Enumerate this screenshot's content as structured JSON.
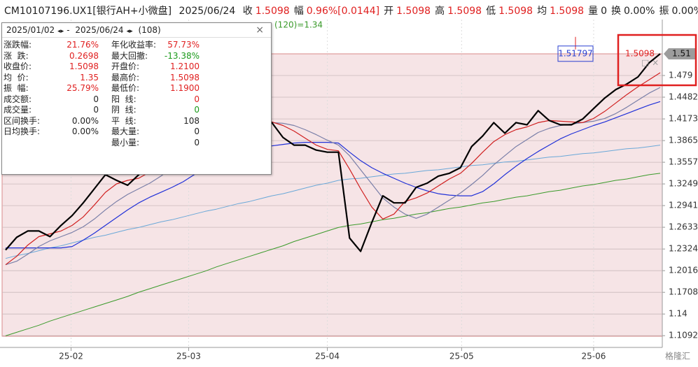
{
  "header": {
    "code": "CM10107196.UX1[银行AH+小微盘]",
    "date": "2025/06/24",
    "items": [
      {
        "label": "收",
        "value": "1.5098",
        "color": "#e02020"
      },
      {
        "label": "幅",
        "value": "0.96%[0.0144]",
        "color": "#e02020"
      },
      {
        "label": "开",
        "value": "1.5098",
        "color": "#e02020"
      },
      {
        "label": "高",
        "value": "1.5098",
        "color": "#e02020"
      },
      {
        "label": "低",
        "value": "1.5098",
        "color": "#e02020"
      },
      {
        "label": "均",
        "value": "1.5098",
        "color": "#e02020"
      },
      {
        "label": "量",
        "value": "0",
        "color": "#222222"
      },
      {
        "label": "换",
        "value": "0.00%",
        "color": "#222222"
      },
      {
        "label": "振",
        "value": "0.00%",
        "color": "#222222"
      }
    ]
  },
  "stats_panel": {
    "start": "2025/01/02",
    "end": "2025/06/24",
    "count": "(108)",
    "close": "×",
    "left": [
      {
        "label": "涨跌幅:",
        "value": "21.76%",
        "color": "#e02020"
      },
      {
        "label": "涨  跌:",
        "value": "0.2698",
        "color": "#e02020"
      },
      {
        "label": "收盘价:",
        "value": "1.5098",
        "color": "#e02020"
      },
      {
        "label": "均  价:",
        "value": "1.35",
        "color": "#e02020"
      },
      {
        "label": "振  幅:",
        "value": "25.79%",
        "color": "#e02020"
      },
      {
        "label": "成交额:",
        "value": "0",
        "color": "#222222"
      },
      {
        "label": "成交量:",
        "value": "0",
        "color": "#222222"
      },
      {
        "label": "区间换手:",
        "value": "0.00%",
        "color": "#222222"
      },
      {
        "label": "日均换手:",
        "value": "0.00%",
        "color": "#222222"
      }
    ],
    "right": [
      {
        "label": "年化收益率:",
        "value": "57.73%",
        "color": "#e02020"
      },
      {
        "label": "最大回撤:",
        "value": "-13.38%",
        "color": "#1a9a1a"
      },
      {
        "label": "开盘价:",
        "value": "1.2100",
        "color": "#e02020"
      },
      {
        "label": "最高价:",
        "value": "1.5098",
        "color": "#e02020"
      },
      {
        "label": "最低价:",
        "value": "1.1900",
        "color": "#e02020"
      },
      {
        "label": "阳  线:",
        "value": "0",
        "color": "#e02020"
      },
      {
        "label": "阴  线:",
        "value": "0",
        "color": "#1a9a1a"
      },
      {
        "label": "平  线:",
        "value": "108",
        "color": "#222222"
      },
      {
        "label": "最大量:",
        "value": "0",
        "color": "#222222"
      },
      {
        "label": "最小量:",
        "value": "0",
        "color": "#222222"
      }
    ]
  },
  "chart_data": {
    "type": "line",
    "xlim": [
      0,
      59
    ],
    "xticks": [
      {
        "value": 5.9,
        "label": "25-02"
      },
      {
        "value": 16.5,
        "label": "25-03"
      },
      {
        "value": 29.0,
        "label": "25-04"
      },
      {
        "value": 41.1,
        "label": "25-05"
      },
      {
        "value": 53.0,
        "label": "25-06"
      }
    ],
    "ylim": [
      1.0925,
      1.5585
    ],
    "yticks": [
      1.479,
      1.4482,
      1.4173,
      1.3865,
      1.3557,
      1.3249,
      1.2941,
      1.2633,
      1.2324,
      1.2016,
      1.1708,
      1.14,
      1.1092
    ],
    "grid": true,
    "current_price": {
      "value": 1.5098,
      "label": "1.51"
    },
    "annotations": [
      {
        "text": "1.5098",
        "value": 1.5098,
        "color": "#e02020"
      },
      {
        "text": "1.51797",
        "value": 1.51797,
        "color": "#2a3fd0"
      },
      {
        "text": "(120)=1.34",
        "color": "#3a9a2a"
      }
    ],
    "watermark": "格隆汇",
    "series": [
      {
        "color": "#3a9a2a",
        "width": 1,
        "values": [
          1.109,
          1.114,
          1.119,
          1.124,
          1.13,
          1.135,
          1.14,
          1.145,
          1.15,
          1.155,
          1.16,
          1.165,
          1.171,
          1.176,
          1.181,
          1.186,
          1.191,
          1.196,
          1.201,
          1.207,
          1.212,
          1.217,
          1.222,
          1.227,
          1.232,
          1.237,
          1.243,
          1.248,
          1.253,
          1.258,
          1.263,
          1.266,
          1.268,
          1.271,
          1.274,
          1.276,
          1.279,
          1.282,
          1.284,
          1.287,
          1.29,
          1.292,
          1.295,
          1.298,
          1.3,
          1.303,
          1.306,
          1.308,
          1.311,
          1.314,
          1.316,
          1.319,
          1.322,
          1.324,
          1.327,
          1.33,
          1.332,
          1.335,
          1.338,
          1.34
        ]
      },
      {
        "color": "#6aa8d8",
        "width": 1,
        "values": [
          1.219,
          1.223,
          1.226,
          1.23,
          1.234,
          1.237,
          1.241,
          1.245,
          1.249,
          1.252,
          1.256,
          1.26,
          1.263,
          1.267,
          1.271,
          1.274,
          1.278,
          1.282,
          1.286,
          1.289,
          1.293,
          1.297,
          1.3,
          1.304,
          1.308,
          1.311,
          1.315,
          1.319,
          1.323,
          1.326,
          1.33,
          1.332,
          1.333,
          1.335,
          1.337,
          1.339,
          1.34,
          1.342,
          1.344,
          1.345,
          1.347,
          1.349,
          1.351,
          1.352,
          1.354,
          1.356,
          1.357,
          1.359,
          1.361,
          1.363,
          1.364,
          1.366,
          1.368,
          1.369,
          1.371,
          1.373,
          1.375,
          1.376,
          1.378,
          1.38
        ]
      },
      {
        "color": "#2030d8",
        "width": 1.2,
        "values": [
          1.234,
          1.234,
          1.234,
          1.234,
          1.234,
          1.234,
          1.236,
          1.245,
          1.255,
          1.266,
          1.277,
          1.288,
          1.298,
          1.306,
          1.313,
          1.32,
          1.328,
          1.338,
          1.348,
          1.356,
          1.362,
          1.368,
          1.372,
          1.376,
          1.379,
          1.381,
          1.383,
          1.384,
          1.384,
          1.384,
          1.383,
          1.37,
          1.358,
          1.348,
          1.34,
          1.333,
          1.326,
          1.32,
          1.315,
          1.311,
          1.309,
          1.308,
          1.308,
          1.314,
          1.325,
          1.338,
          1.35,
          1.361,
          1.371,
          1.38,
          1.389,
          1.396,
          1.402,
          1.408,
          1.413,
          1.419,
          1.425,
          1.431,
          1.437,
          1.442
        ]
      },
      {
        "color": "#7a7fa8",
        "width": 1.2,
        "values": [
          1.21,
          1.215,
          1.225,
          1.236,
          1.244,
          1.25,
          1.256,
          1.264,
          1.275,
          1.288,
          1.3,
          1.31,
          1.318,
          1.326,
          1.336,
          1.348,
          1.36,
          1.37,
          1.38,
          1.388,
          1.396,
          1.402,
          1.407,
          1.41,
          1.412,
          1.411,
          1.408,
          1.402,
          1.395,
          1.387,
          1.38,
          1.365,
          1.345,
          1.325,
          1.305,
          1.292,
          1.282,
          1.276,
          1.282,
          1.292,
          1.302,
          1.312,
          1.324,
          1.337,
          1.352,
          1.365,
          1.378,
          1.388,
          1.398,
          1.404,
          1.408,
          1.41,
          1.412,
          1.414,
          1.418,
          1.425,
          1.434,
          1.444,
          1.454,
          1.462
        ]
      },
      {
        "color": "#d02020",
        "width": 1.2,
        "values": [
          1.21,
          1.222,
          1.238,
          1.25,
          1.254,
          1.258,
          1.266,
          1.278,
          1.295,
          1.313,
          1.325,
          1.33,
          1.333,
          1.342,
          1.355,
          1.368,
          1.38,
          1.39,
          1.398,
          1.405,
          1.41,
          1.413,
          1.414,
          1.415,
          1.413,
          1.408,
          1.4,
          1.39,
          1.38,
          1.374,
          1.372,
          1.346,
          1.318,
          1.292,
          1.275,
          1.282,
          1.3,
          1.305,
          1.312,
          1.322,
          1.332,
          1.34,
          1.354,
          1.37,
          1.385,
          1.395,
          1.402,
          1.406,
          1.412,
          1.415,
          1.414,
          1.413,
          1.412,
          1.418,
          1.428,
          1.44,
          1.452,
          1.463,
          1.473,
          1.483
        ]
      },
      {
        "color": "#000000",
        "width": 2.2,
        "values": [
          1.231,
          1.249,
          1.258,
          1.258,
          1.25,
          1.266,
          1.28,
          1.298,
          1.318,
          1.338,
          1.33,
          1.323,
          1.338,
          1.358,
          1.373,
          1.383,
          1.393,
          1.403,
          1.407,
          1.412,
          1.417,
          1.415,
          1.412,
          1.417,
          1.412,
          1.391,
          1.38,
          1.38,
          1.373,
          1.37,
          1.37,
          1.248,
          1.229,
          1.27,
          1.308,
          1.298,
          1.298,
          1.32,
          1.326,
          1.336,
          1.34,
          1.348,
          1.378,
          1.393,
          1.412,
          1.397,
          1.412,
          1.409,
          1.429,
          1.415,
          1.409,
          1.409,
          1.417,
          1.432,
          1.447,
          1.459,
          1.467,
          1.477,
          1.497,
          1.5098
        ]
      }
    ]
  }
}
